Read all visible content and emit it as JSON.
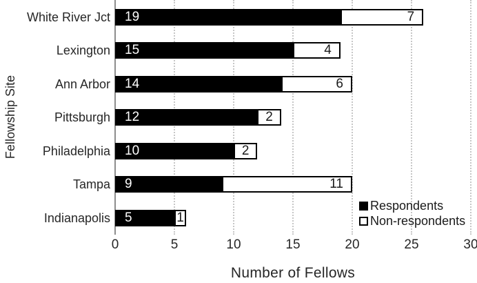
{
  "chart_data": {
    "type": "bar",
    "orientation": "horizontal",
    "stacked": true,
    "title": "",
    "xlabel": "Number of Fellows",
    "ylabel": "Fellowship Site",
    "categories": [
      "White River Jct",
      "Lexington",
      "Ann Arbor",
      "Pittsburgh",
      "Philadelphia",
      "Tampa",
      "Indianapolis"
    ],
    "series": [
      {
        "name": "Respondents",
        "color": "#000000",
        "values": [
          19,
          15,
          14,
          12,
          10,
          9,
          5
        ]
      },
      {
        "name": "Non-respondents",
        "color": "#ffffff",
        "values": [
          7,
          4,
          6,
          2,
          2,
          11,
          1
        ]
      }
    ],
    "xlim": [
      0,
      30
    ],
    "xticks": [
      0,
      5,
      10,
      15,
      20,
      25,
      30
    ],
    "grid": "vertical-dotted",
    "legend_position": "inside-bottom-right",
    "data_labels": true
  },
  "colors": {
    "respondents_fill": "#000000",
    "non_respondents_fill": "#ffffff",
    "bar_outline": "#000000",
    "gridline": "#c6c6c6",
    "axis_line": "#8c8c8c",
    "text": "#262626"
  }
}
